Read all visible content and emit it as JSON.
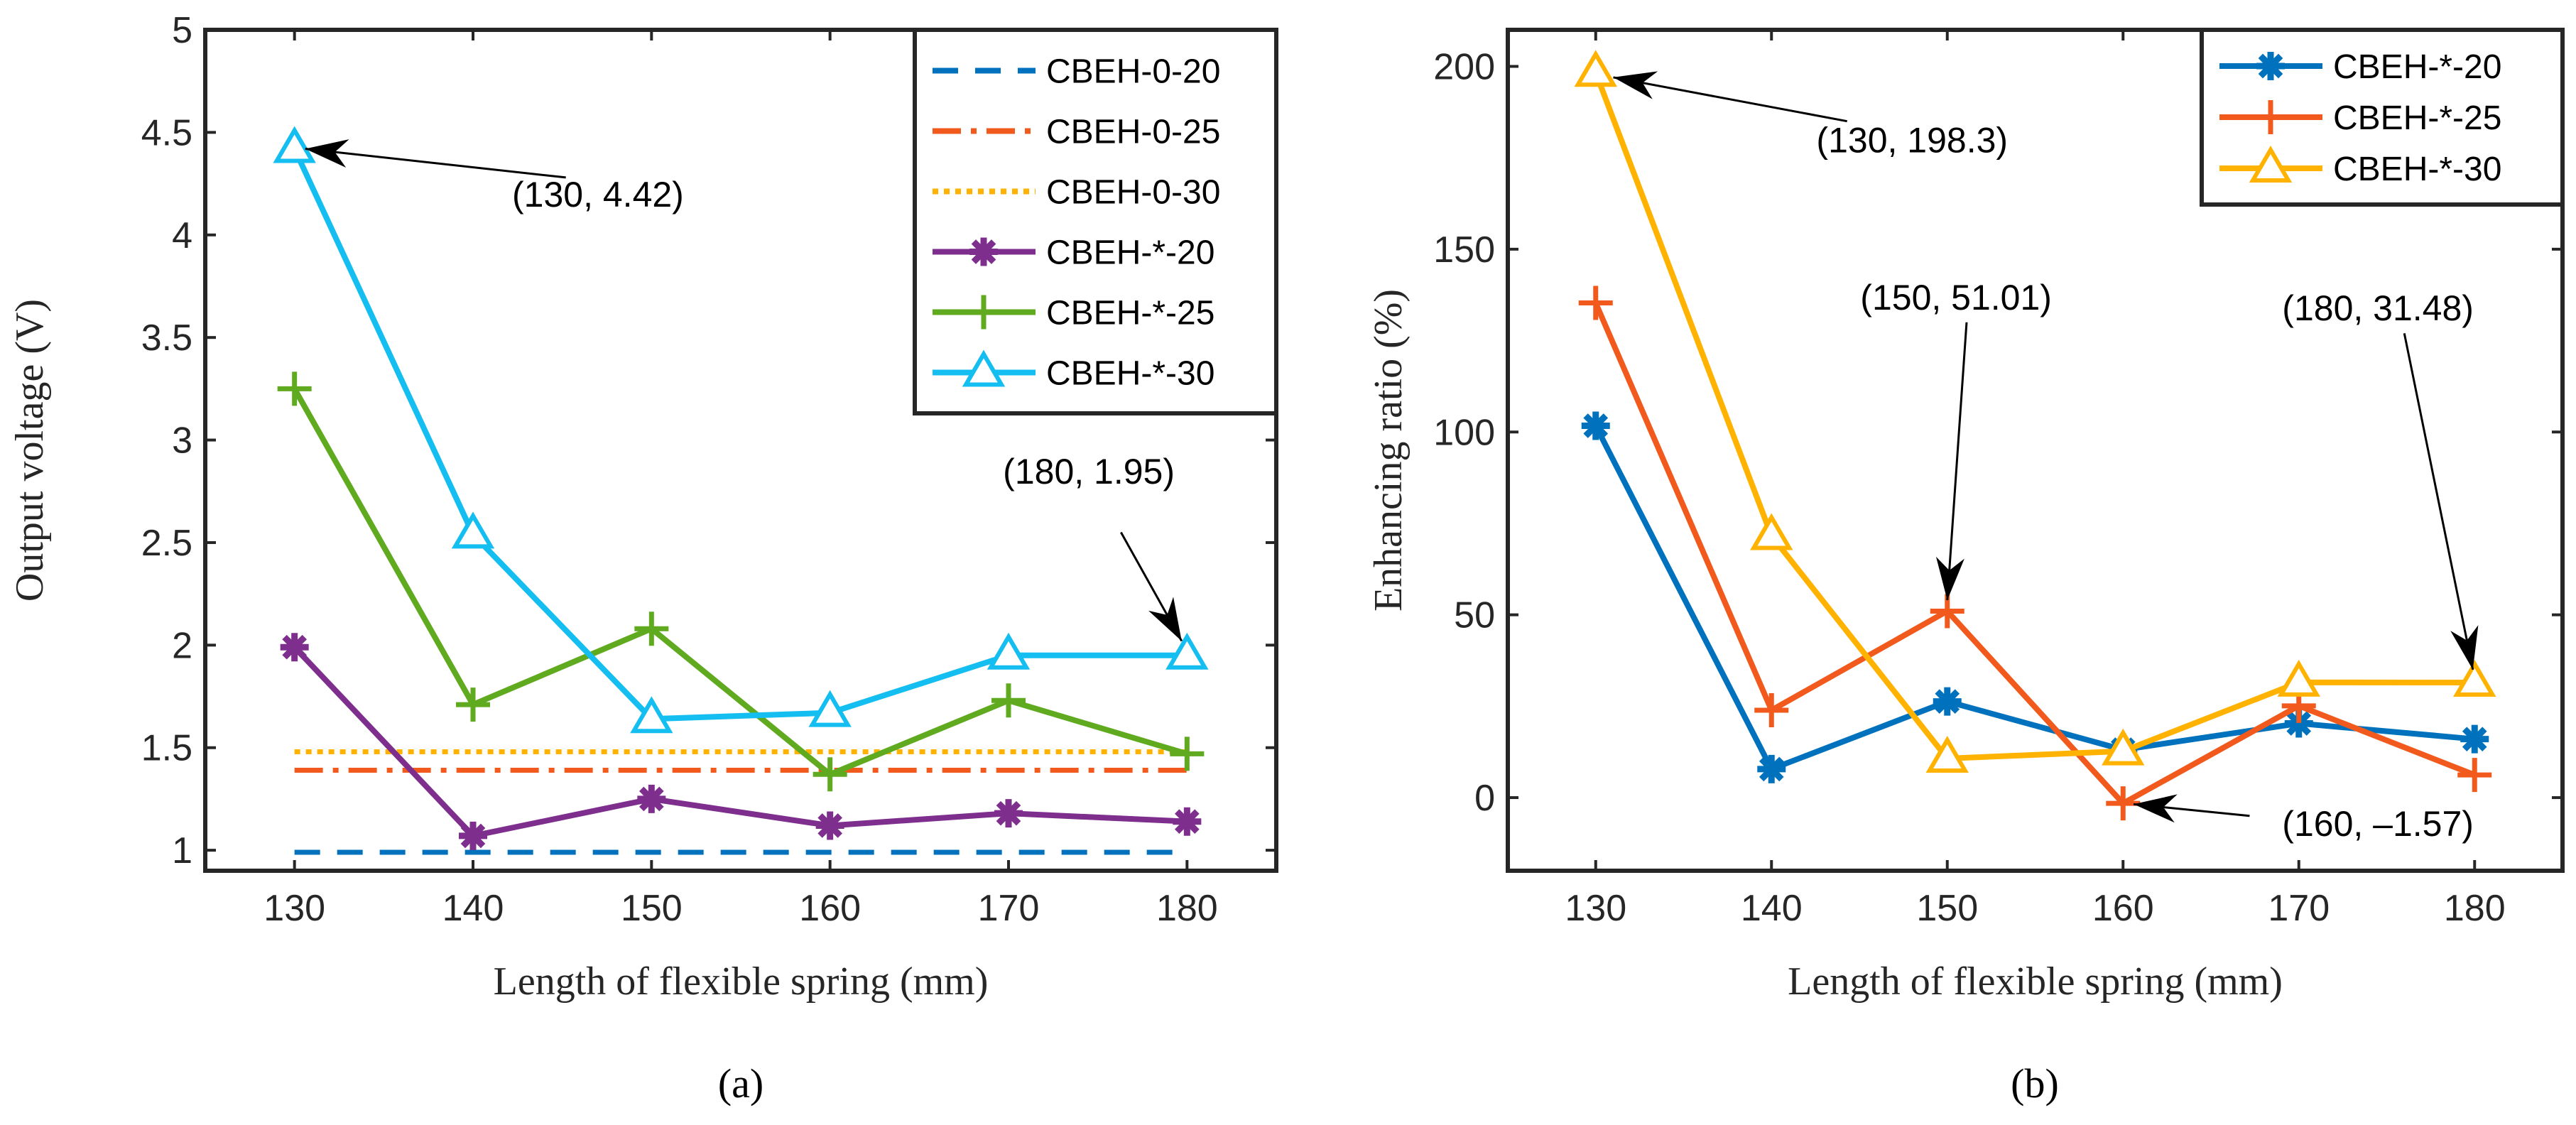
{
  "chart_data": [
    {
      "type": "line",
      "caption": "(a)",
      "xlabel": "Length of flexible spring (mm)",
      "ylabel": "Output voltage (V)",
      "x": [
        130,
        140,
        150,
        160,
        170,
        180
      ],
      "xlim": [
        125,
        185
      ],
      "ylim": [
        0.9,
        5
      ],
      "xticks": [
        "130",
        "140",
        "150",
        "160",
        "170",
        "180"
      ],
      "yticks": [
        "1",
        "1.5",
        "2",
        "2.5",
        "3",
        "3.5",
        "4",
        "4.5",
        "5"
      ],
      "legend_position": "top-right",
      "series": [
        {
          "name": "CBEH-0-20",
          "color": "#0072BD",
          "style": "dashed",
          "marker": "none",
          "values": [
            0.99,
            0.99,
            0.99,
            0.99,
            0.99,
            0.99
          ]
        },
        {
          "name": "CBEH-0-25",
          "color": "#F25A1D",
          "style": "dashdot",
          "marker": "none",
          "values": [
            1.39,
            1.39,
            1.39,
            1.39,
            1.39,
            1.39
          ]
        },
        {
          "name": "CBEH-0-30",
          "color": "#FFB300",
          "style": "dotted",
          "marker": "none",
          "values": [
            1.48,
            1.48,
            1.48,
            1.48,
            1.48,
            1.48
          ]
        },
        {
          "name": "CBEH-*-20",
          "color": "#7E2F8E",
          "style": "solid",
          "marker": "asterisk",
          "values": [
            1.99,
            1.07,
            1.25,
            1.12,
            1.18,
            1.14
          ]
        },
        {
          "name": "CBEH-*-25",
          "color": "#5FAA1E",
          "style": "solid",
          "marker": "plus",
          "values": [
            3.25,
            1.71,
            2.08,
            1.37,
            1.73,
            1.47
          ]
        },
        {
          "name": "CBEH-*-30",
          "color": "#14BEF0",
          "style": "solid",
          "marker": "triangle",
          "values": [
            4.42,
            2.54,
            1.64,
            1.67,
            1.95,
            1.95
          ]
        }
      ],
      "annotations": [
        {
          "text": "(130, 4.42)",
          "point": [
            130,
            4.42
          ]
        },
        {
          "text": "(180, 1.95)",
          "point": [
            180,
            1.95
          ]
        }
      ]
    },
    {
      "type": "line",
      "caption": "(b)",
      "xlabel": "Length of flexible spring (mm)",
      "ylabel": "Enhancing ratio (%)",
      "x": [
        130,
        140,
        150,
        160,
        170,
        180
      ],
      "xlim": [
        125,
        185
      ],
      "ylim": [
        -20,
        210
      ],
      "xticks": [
        "130",
        "140",
        "150",
        "160",
        "170",
        "180"
      ],
      "yticks": [
        "0",
        "50",
        "100",
        "150",
        "200"
      ],
      "legend_position": "top-right",
      "series": [
        {
          "name": "CBEH-*-20",
          "color": "#0072BD",
          "style": "solid",
          "marker": "asterisk",
          "values": [
            101.7,
            7.8,
            26.3,
            13.1,
            20.3,
            16.0
          ]
        },
        {
          "name": "CBEH-*-25",
          "color": "#F25A1D",
          "style": "solid",
          "marker": "plus",
          "values": [
            135.3,
            23.9,
            51.01,
            -1.57,
            25.1,
            6.2
          ]
        },
        {
          "name": "CBEH-*-30",
          "color": "#FFB300",
          "style": "solid",
          "marker": "triangle",
          "values": [
            198.3,
            71.6,
            10.7,
            12.7,
            31.5,
            31.48
          ]
        }
      ],
      "annotations": [
        {
          "text": "(130, 198.3)",
          "point": [
            130,
            198.3
          ]
        },
        {
          "text": "(150, 51.01)",
          "point": [
            150,
            51.01
          ]
        },
        {
          "text": "(180, 31.48)",
          "point": [
            180,
            31.48
          ]
        },
        {
          "text": "(160, –1.57)",
          "point": [
            160,
            -1.57
          ]
        }
      ]
    }
  ]
}
